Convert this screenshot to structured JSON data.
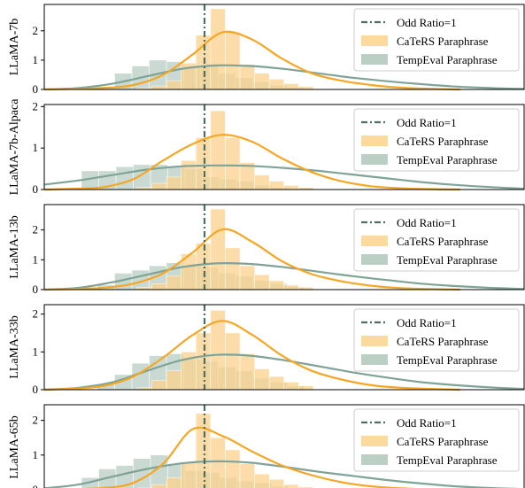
{
  "chart_data": {
    "type": "histogram-kde",
    "x_reference": {
      "label": "Odd Ratio=1"
    },
    "legend": {
      "placement": "top-right",
      "entries": [
        "Odd Ratio=1",
        "CaTeRS Paraphrase",
        "TempEval Paraphrase"
      ]
    },
    "colors": {
      "caters": "#f6a623",
      "caters_fill": "#fbd28c",
      "tempeval": "#7fa396",
      "tempeval_fill": "#b4cabf",
      "reference_line": "#4f6e63"
    },
    "panels": [
      {
        "ylabel": "LLaMA-7b",
        "ylim": [
          0,
          2.9
        ],
        "yticks": [
          0,
          1,
          2
        ],
        "caters_hist": [
          0.05,
          0.12,
          0.3,
          0.9,
          1.85,
          2.75,
          1.95,
          0.85,
          0.55,
          0.35,
          0.2,
          0.1
        ],
        "tempeval_hist": [
          0.1,
          0.55,
          0.8,
          1.0,
          0.95,
          0.8,
          0.8,
          0.55,
          0.4,
          0.25,
          0.15,
          0.08
        ],
        "caters_kde": [
          0.0,
          0.02,
          0.05,
          0.15,
          0.5,
          1.2,
          1.95,
          1.7,
          1.05,
          0.55,
          0.3,
          0.15,
          0.06,
          0.02,
          0.0
        ],
        "tempeval_kde": [
          0.0,
          0.05,
          0.2,
          0.45,
          0.7,
          0.82,
          0.8,
          0.7,
          0.55,
          0.4,
          0.28,
          0.18,
          0.1,
          0.05,
          0.02
        ]
      },
      {
        "ylabel": "LLaMA-7b-Alpaca",
        "ylim": [
          0,
          2.05
        ],
        "yticks": [
          0,
          1,
          2
        ],
        "caters_hist": [
          0.05,
          0.15,
          0.3,
          0.7,
          1.25,
          1.9,
          1.25,
          0.65,
          0.35,
          0.2,
          0.1,
          0.05
        ],
        "tempeval_hist": [
          0.45,
          0.45,
          0.55,
          0.6,
          0.6,
          0.55,
          0.5,
          0.3,
          0.25,
          0.2,
          0.1,
          0.05
        ],
        "caters_kde": [
          0.0,
          0.02,
          0.06,
          0.25,
          0.7,
          1.1,
          1.32,
          1.15,
          0.75,
          0.42,
          0.2,
          0.08,
          0.03,
          0.01,
          0.0
        ],
        "tempeval_kde": [
          0.12,
          0.22,
          0.35,
          0.48,
          0.56,
          0.58,
          0.57,
          0.52,
          0.45,
          0.36,
          0.27,
          0.18,
          0.11,
          0.06,
          0.02
        ]
      },
      {
        "ylabel": "LLaMA-13b",
        "ylim": [
          0,
          2.85
        ],
        "yticks": [
          0,
          1,
          2
        ],
        "caters_hist": [
          0.08,
          0.2,
          0.45,
          1.2,
          1.55,
          2.7,
          1.4,
          0.8,
          0.5,
          0.3,
          0.15,
          0.08
        ],
        "tempeval_hist": [
          0.15,
          0.55,
          0.65,
          0.8,
          0.9,
          0.8,
          0.75,
          0.55,
          0.45,
          0.3,
          0.2,
          0.1
        ],
        "caters_kde": [
          0.0,
          0.02,
          0.06,
          0.2,
          0.55,
          1.25,
          2.02,
          1.6,
          0.95,
          0.52,
          0.28,
          0.13,
          0.05,
          0.02,
          0.0
        ],
        "tempeval_kde": [
          0.0,
          0.06,
          0.25,
          0.5,
          0.75,
          0.88,
          0.86,
          0.75,
          0.6,
          0.45,
          0.32,
          0.2,
          0.12,
          0.06,
          0.02
        ]
      },
      {
        "ylabel": "LLaMA-33b",
        "ylim": [
          0,
          2.25
        ],
        "yticks": [
          0,
          1,
          2
        ],
        "caters_hist": [
          0.05,
          0.25,
          0.5,
          1.0,
          1.5,
          2.1,
          1.5,
          0.95,
          0.55,
          0.35,
          0.2,
          0.1
        ],
        "tempeval_hist": [
          0.15,
          0.4,
          0.7,
          0.9,
          0.95,
          0.8,
          0.75,
          0.6,
          0.5,
          0.3,
          0.2,
          0.1
        ],
        "caters_kde": [
          0.0,
          0.03,
          0.1,
          0.35,
          0.85,
          1.45,
          1.82,
          1.45,
          0.9,
          0.5,
          0.27,
          0.12,
          0.05,
          0.02,
          0.0
        ],
        "tempeval_kde": [
          0.0,
          0.05,
          0.2,
          0.5,
          0.78,
          0.92,
          0.9,
          0.78,
          0.62,
          0.46,
          0.32,
          0.2,
          0.12,
          0.06,
          0.02
        ]
      },
      {
        "ylabel": "LLaMA-65b",
        "ylim": [
          0,
          2.45
        ],
        "yticks": [
          0,
          1,
          2
        ],
        "caters_hist": [
          0.05,
          0.15,
          0.35,
          0.8,
          2.2,
          1.5,
          1.15,
          0.75,
          0.45,
          0.3,
          0.15,
          0.08
        ],
        "tempeval_hist": [
          0.35,
          0.6,
          0.7,
          0.9,
          1.0,
          0.75,
          0.55,
          0.5,
          0.35,
          0.25,
          0.2,
          0.1
        ],
        "caters_kde": [
          0.0,
          0.02,
          0.05,
          0.2,
          0.75,
          1.75,
          1.55,
          1.1,
          0.7,
          0.42,
          0.22,
          0.1,
          0.04,
          0.01,
          0.0
        ],
        "tempeval_kde": [
          0.04,
          0.15,
          0.38,
          0.6,
          0.76,
          0.82,
          0.78,
          0.66,
          0.52,
          0.4,
          0.28,
          0.18,
          0.1,
          0.05,
          0.02
        ]
      }
    ]
  }
}
